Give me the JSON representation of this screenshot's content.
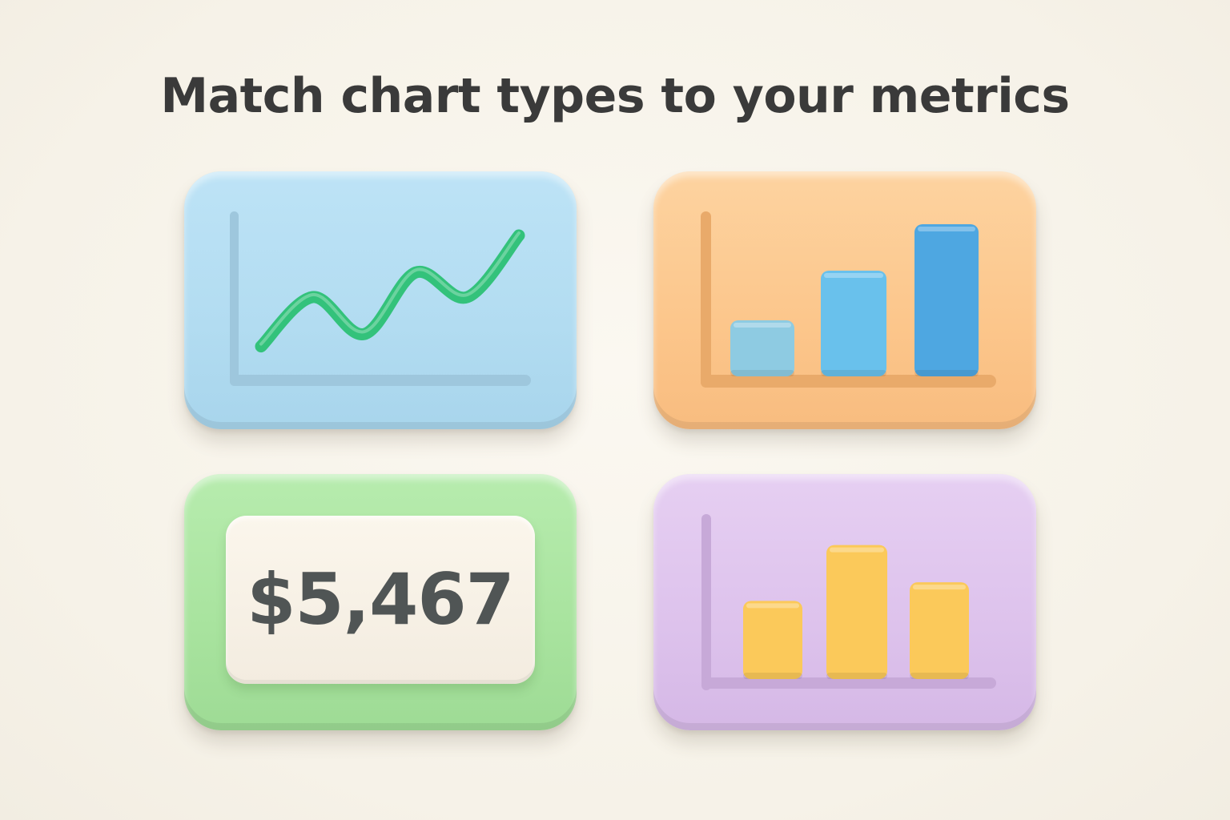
{
  "title": "Match chart types to your metrics",
  "tiles": [
    {
      "kind": "line-chart",
      "background": "#b4dcf1",
      "axis_color": "#9ec7dd",
      "line_color": "#33c27b",
      "chart_data": {
        "type": "line",
        "x": [
          0,
          1,
          2,
          3,
          4,
          5
        ],
        "values": [
          1,
          5,
          2,
          7,
          5,
          10
        ],
        "ylim": [
          0,
          12
        ]
      }
    },
    {
      "kind": "bar-chart",
      "background": "#fcc68b",
      "axis_color": "#e9aa6a",
      "bar_colors": [
        "#8ecbe2",
        "#69c1ec",
        "#4ea7e1"
      ],
      "chart_data": {
        "type": "bar",
        "values": [
          3.5,
          6.6,
          9.5
        ],
        "ylim": [
          0,
          10
        ]
      }
    },
    {
      "kind": "kpi",
      "background": "#a8e39e",
      "card_color": "#f6f0e5",
      "text_color": "#505555",
      "value": "$5,467"
    },
    {
      "kind": "column-chart",
      "background": "#ddc2ec",
      "axis_color": "#c7a9d8",
      "bar_color": "#fbc95a",
      "chart_data": {
        "type": "bar",
        "values": [
          4.2,
          7.2,
          5.2
        ],
        "ylim": [
          0,
          8
        ]
      }
    }
  ]
}
